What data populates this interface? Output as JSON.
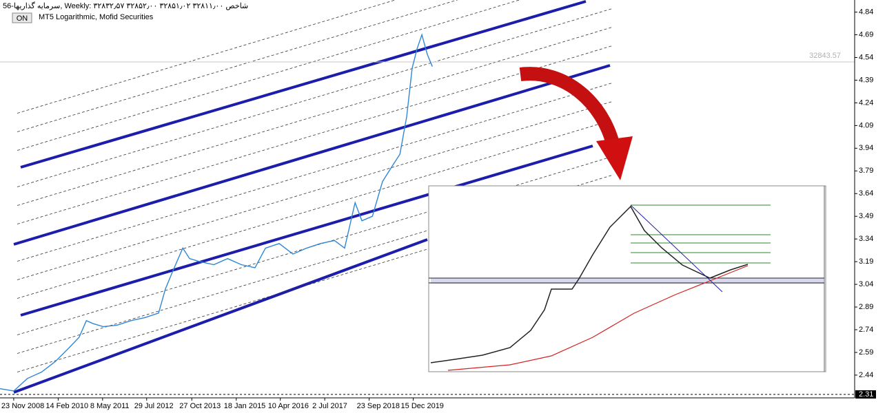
{
  "chart_data": {
    "type": "line",
    "title": "56-سرمایه گذاریها, Weekly: ۳۲۸۳۲٫۵۷ ۳۲۸۵۲٫۰۰ ۳۲۸۵۱٫۰۲ ۳۲۸۱۱٫۰۰ شاخص",
    "subtitle": "MT5 Logarithmic, Mofid Securities",
    "button": "ON",
    "price_label": "32843.57",
    "bottom_marker": 2.31,
    "log_scale": true,
    "x": [
      2008.51,
      2008.89,
      2009.27,
      2009.66,
      2010.04,
      2010.42,
      2010.7,
      2010.9,
      2011.09,
      2011.37,
      2011.75,
      2012.14,
      2012.52,
      2012.9,
      2013.09,
      2013.28,
      2013.57,
      2013.76,
      2014.04,
      2014.43,
      2014.81,
      2015.19,
      2015.57,
      2015.86,
      2016.24,
      2016.62,
      2017.0,
      2017.38,
      2017.77,
      2018.05,
      2018.34,
      2018.53,
      2018.82,
      2019.1,
      2019.39,
      2019.58,
      2019.77,
      2019.92,
      2020.06,
      2020.19,
      2020.34,
      2020.48
    ],
    "series": [
      {
        "name": "شاخص",
        "color": "#2f86d6",
        "values": [
          2.35,
          2.335,
          2.418,
          2.46,
          2.53,
          2.62,
          2.69,
          2.8,
          2.78,
          2.76,
          2.77,
          2.8,
          2.82,
          2.85,
          3.01,
          3.12,
          3.28,
          3.21,
          3.19,
          3.17,
          3.21,
          3.17,
          3.15,
          3.28,
          3.31,
          3.24,
          3.28,
          3.31,
          3.33,
          3.28,
          3.58,
          3.46,
          3.49,
          3.72,
          3.83,
          3.9,
          4.15,
          4.47,
          4.6,
          4.69,
          4.56,
          4.48
        ]
      }
    ],
    "xlim": [
      2008.51,
      2032.17
    ],
    "xticks": [
      {
        "value": 2008.89,
        "label": "23 Nov 2008"
      },
      {
        "value": 2010.12,
        "label": "14 Feb 2010"
      },
      {
        "value": 2011.35,
        "label": "8 May 2011"
      },
      {
        "value": 2012.57,
        "label": "29 Jul 2012"
      },
      {
        "value": 2013.82,
        "label": "27 Oct 2013"
      },
      {
        "value": 2015.05,
        "label": "18 Jan 2015"
      },
      {
        "value": 2016.27,
        "label": "10 Apr 2016"
      },
      {
        "value": 2017.5,
        "label": "2 Jul 2017"
      },
      {
        "value": 2018.73,
        "label": "23 Sep 2018"
      },
      {
        "value": 2019.95,
        "label": "15 Dec 2019"
      }
    ],
    "ylim": [
      2.31,
      4.92
    ],
    "yticks": [
      4.84,
      4.69,
      4.54,
      4.39,
      4.24,
      4.09,
      3.94,
      3.79,
      3.64,
      3.49,
      3.34,
      3.19,
      3.04,
      2.89,
      2.74,
      2.59,
      2.44
    ]
  }
}
